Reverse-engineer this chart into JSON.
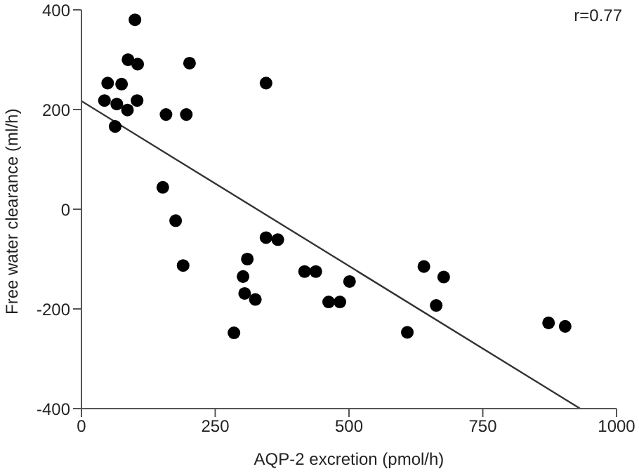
{
  "chart_data": {
    "type": "scatter",
    "xlabel": "AQP-2 excretion (pmol/h)",
    "ylabel": "Free water clearance (ml/h)",
    "annotations": [
      "r=0.77"
    ],
    "series": [
      {
        "color": "#000000",
        "marker": "circle",
        "x": [
          100,
          87,
          105,
          202,
          345,
          49,
          75,
          43,
          66,
          86,
          104,
          63,
          158,
          196,
          152,
          176,
          190,
          345,
          367,
          310,
          302,
          305,
          325,
          285,
          417,
          438,
          462,
          483,
          501,
          640,
          677,
          663,
          609,
          873,
          904
        ],
        "values": [
          380,
          300,
          291,
          293,
          253,
          253,
          251,
          218,
          211,
          199,
          218,
          166,
          190,
          190,
          44,
          -23,
          -113,
          -57,
          -61,
          -100,
          -135,
          -169,
          -181,
          -248,
          -125,
          -125,
          -186,
          -186,
          -145,
          -115,
          -136,
          -193,
          -247,
          -228,
          -235
        ]
      },
      {
        "type": "line",
        "color": "#333333",
        "marker": "none",
        "x": [
          0,
          932
        ],
        "values": [
          217,
          -400
        ]
      }
    ],
    "xlim": [
      0,
      1000
    ],
    "xticks": [
      0,
      250,
      500,
      750,
      1000
    ],
    "ylim": [
      -400,
      400
    ],
    "yticks": [
      -400,
      -200,
      0,
      200,
      400
    ],
    "grid": false
  }
}
